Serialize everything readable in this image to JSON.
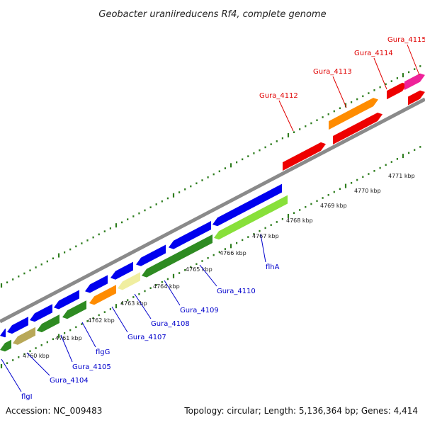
{
  "header": {
    "title": "Geobacter uraniireducens Rf4, complete genome"
  },
  "footer": {
    "accession": "Accession: NC_009483",
    "summary": "Topology: circular; Length: 5,136,364 bp; Genes: 4,414"
  },
  "colors": {
    "backbone": "#8a8a8a",
    "tick": "#2e7d1e",
    "top_label": "#e00000",
    "bottom_label": "#0000cc",
    "feature_blue": "#0000ee",
    "feature_green": "#2e8b22",
    "feature_light_green": "#88e03a",
    "feature_khaki": "#b8a858",
    "feature_pale": "#f0eea0",
    "feature_orange": "#ff8c00",
    "feature_red": "#ee0000",
    "feature_magenta": "#ee2299"
  },
  "scale": {
    "ticks": [
      {
        "label": "4760 kbp"
      },
      {
        "label": "4761 kbp"
      },
      {
        "label": "4762 kbp"
      },
      {
        "label": "4763 kbp"
      },
      {
        "label": "4764 kbp"
      },
      {
        "label": "4765 kbp"
      },
      {
        "label": "4766 kbp"
      },
      {
        "label": "4767 kbp"
      },
      {
        "label": "4768 kbp"
      },
      {
        "label": "4769 kbp"
      },
      {
        "label": "4770 kbp"
      },
      {
        "label": "4771 kbp"
      }
    ]
  },
  "labels": {
    "top": [
      "Gura_4112",
      "Gura_4113",
      "Gura_4114",
      "Gura_4115"
    ],
    "bottom": [
      "flgI",
      "Gura_4104",
      "Gura_4105",
      "flgG",
      "Gura_4107",
      "Gura_4108",
      "Gura_4109",
      "Gura_4110",
      "flhA"
    ]
  },
  "features": {
    "forward_top": [
      {
        "kind": "feature_orange"
      },
      {
        "kind": "feature_red"
      },
      {
        "kind": "feature_magenta"
      }
    ],
    "forward_bottom": [
      {
        "kind": "feature_red"
      },
      {
        "kind": "feature_red"
      },
      {
        "kind": "feature_red"
      }
    ],
    "reverse_top": [
      {
        "kind": "feature_blue"
      },
      {
        "kind": "feature_blue"
      },
      {
        "kind": "feature_blue"
      },
      {
        "kind": "feature_blue"
      },
      {
        "kind": "feature_blue"
      },
      {
        "kind": "feature_blue"
      },
      {
        "kind": "feature_blue"
      },
      {
        "kind": "feature_blue"
      },
      {
        "kind": "feature_blue"
      }
    ],
    "reverse_bottom": [
      {
        "kind": "feature_green"
      },
      {
        "kind": "feature_khaki"
      },
      {
        "kind": "feature_green"
      },
      {
        "kind": "feature_green"
      },
      {
        "kind": "feature_orange"
      },
      {
        "kind": "feature_pale"
      },
      {
        "kind": "feature_green"
      },
      {
        "kind": "feature_light_green"
      }
    ]
  }
}
